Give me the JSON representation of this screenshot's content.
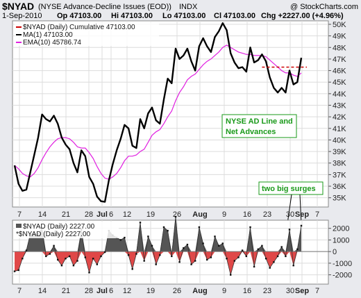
{
  "header": {
    "symbol": "$NYAD",
    "description": "(NYSE Advance-Decline Issues (EOD))",
    "exchange": "INDX",
    "copyright": "@ StockCharts.com",
    "date": "1-Sep-2010",
    "op": "Op 47103.00",
    "hi": "Hi 47103.00",
    "lo": "Lo 47103.00",
    "cl": "Cl 47103.00",
    "chg": "Chg +2227.00 (+4.96%)"
  },
  "legend_upper": {
    "main": "$NYAD (Daily) Cumulative 47103.00",
    "ma": "MA(1) 47103.00",
    "ema": "EMA(10) 45786.74"
  },
  "legend_lower": {
    "line1": "$NYAD (Daily) 2227.00",
    "line2": "*$NYAD (Daily) 2227.00"
  },
  "annotations": {
    "box1_line1": "NYSE AD Line and",
    "box1_line2": "Net Advances",
    "box2": "two big surges"
  },
  "colors": {
    "line": "#000000",
    "ema": "#e020e0",
    "positive": "#555555",
    "negative": "#e04848",
    "dashed": "#cc0000",
    "annotation_text": "#1a9a1a"
  },
  "chart_data": [
    {
      "type": "line",
      "title": "$NYAD (Daily) Cumulative",
      "x_tick_labels": [
        "7",
        "14",
        "21",
        "28",
        "Jul",
        "6",
        "12",
        "19",
        "26",
        "Aug",
        "9",
        "16",
        "23",
        "30",
        "Sep",
        "7"
      ],
      "y_tick_labels": [
        "35K",
        "36K",
        "37K",
        "38K",
        "39K",
        "40K",
        "41K",
        "42K",
        "43K",
        "44K",
        "45K",
        "46K",
        "47K",
        "48K",
        "49K",
        "50K"
      ],
      "ylim": [
        34200,
        50300
      ],
      "grid": true,
      "series": [
        {
          "name": "MA(1)",
          "values": [
            37800,
            36200,
            35600,
            35700,
            37200,
            38700,
            40200,
            42200,
            41800,
            41600,
            42100,
            41400,
            40200,
            39600,
            39200,
            38000,
            37200,
            39100,
            38600,
            36800,
            36200,
            35100,
            34700,
            34650,
            36500,
            37900,
            39100,
            40100,
            41300,
            41000,
            39500,
            39300,
            41800,
            41000,
            42300,
            42800,
            41700,
            41400,
            43500,
            45300,
            44900,
            47900,
            47000,
            47300,
            47900,
            46800,
            46000,
            48100,
            48800,
            48100,
            47600,
            48900,
            49400,
            50100,
            49500,
            47500,
            46700,
            46200,
            46300,
            45900,
            48000,
            46700,
            46900,
            47400,
            46800,
            45400,
            44500,
            44100,
            44500,
            44100,
            46000,
            44800,
            45000,
            47103
          ]
        },
        {
          "name": "EMA(10)",
          "values": [
            37800,
            37500,
            37100,
            36900,
            36800,
            37100,
            37600,
            38300,
            38900,
            39400,
            39800,
            40100,
            40200,
            40200,
            40100,
            39800,
            39400,
            39300,
            39300,
            38900,
            38400,
            37700,
            37100,
            36700,
            36600,
            36800,
            37100,
            37600,
            38200,
            38600,
            38600,
            38700,
            39000,
            39200,
            39800,
            40400,
            40700,
            40900,
            41400,
            42000,
            42500,
            43400,
            44100,
            44600,
            45200,
            45500,
            45700,
            46100,
            46500,
            46800,
            47000,
            47300,
            47600,
            48000,
            48200,
            48000,
            47800,
            47600,
            47500,
            47400,
            47400,
            47300,
            47300,
            47300,
            47200,
            46900,
            46600,
            46300,
            46000,
            45800,
            45800,
            45600,
            45500,
            45787
          ]
        }
      ]
    },
    {
      "type": "bar",
      "title": "$NYAD (Daily)",
      "y_tick_labels": [
        "2000",
        "1000",
        "0",
        "-1000",
        "-2000"
      ],
      "ylim": [
        -2800,
        2700
      ],
      "values": [
        -1700,
        -1600,
        -600,
        100,
        1500,
        1500,
        1500,
        2000,
        -400,
        -200,
        500,
        -700,
        -1200,
        -600,
        -400,
        -1200,
        -800,
        1900,
        -500,
        -1800,
        -600,
        -1100,
        -400,
        -50,
        1800,
        1400,
        1200,
        1000,
        1200,
        -300,
        -1500,
        -200,
        2500,
        -800,
        1300,
        500,
        -1100,
        -300,
        2100,
        1800,
        -400,
        3000,
        -900,
        300,
        600,
        -1100,
        -800,
        2100,
        700,
        -700,
        -500,
        1300,
        500,
        700,
        -600,
        -2000,
        -800,
        -500,
        100,
        -400,
        2100,
        -1300,
        200,
        500,
        -600,
        -1400,
        -900,
        -400,
        400,
        -400,
        1900,
        -1200,
        200,
        2227
      ]
    }
  ]
}
